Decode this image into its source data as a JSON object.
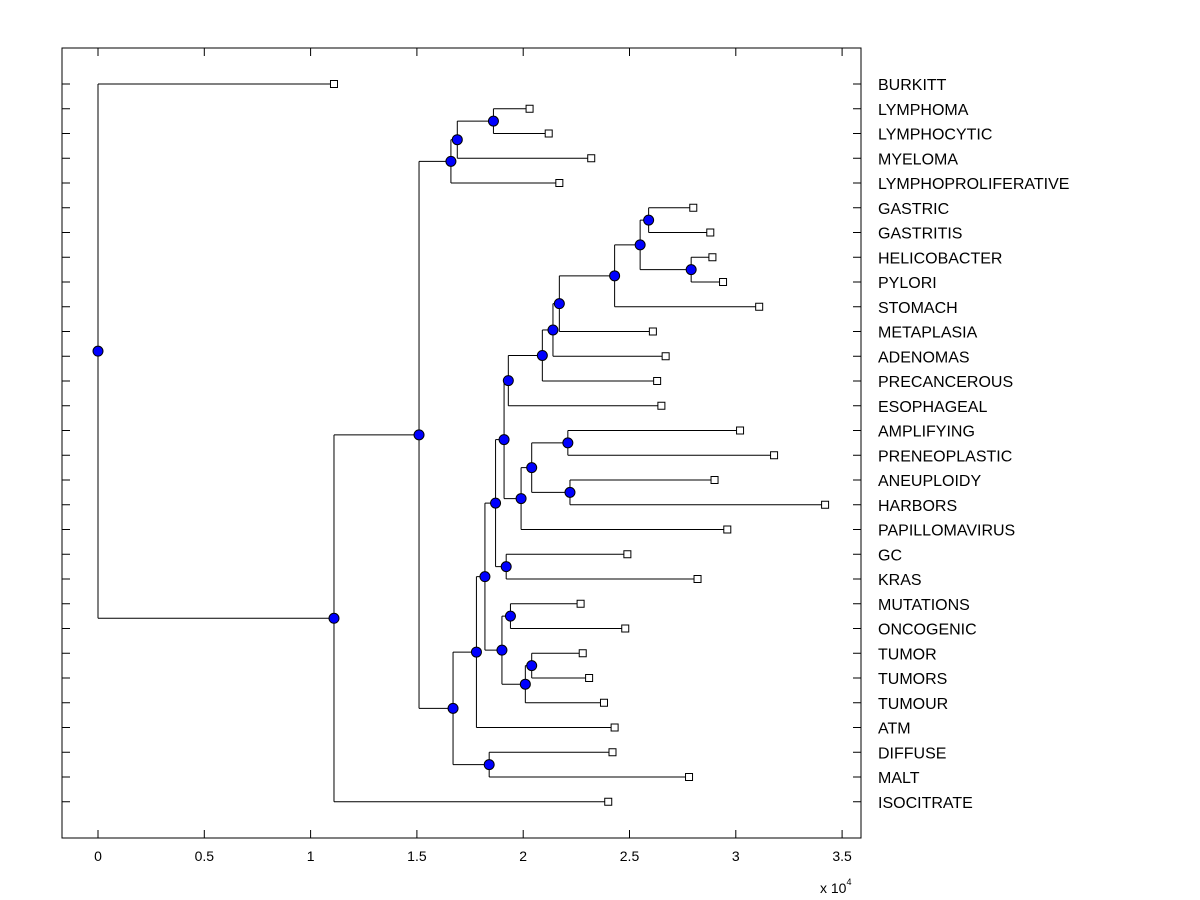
{
  "chart_data": {
    "type": "dendrogram",
    "x_ticks": [
      0,
      0.5,
      1,
      1.5,
      2,
      2.5,
      3,
      3.5
    ],
    "x_tick_labels": [
      "0",
      "0.5",
      "1",
      "1.5",
      "2",
      "2.5",
      "3",
      "3.5"
    ],
    "x_scale_label": "x 10",
    "x_scale_exponent": "4",
    "xlim": [
      -0.17,
      3.6
    ],
    "leaves": [
      {
        "label": "BURKITT",
        "x": 1.11
      },
      {
        "label": "LYMPHOMA",
        "x": 2.03
      },
      {
        "label": "LYMPHOCYTIC",
        "x": 2.12
      },
      {
        "label": "MYELOMA",
        "x": 2.32
      },
      {
        "label": "LYMPHOPROLIFERATIVE",
        "x": 2.17
      },
      {
        "label": "GASTRIC",
        "x": 2.8
      },
      {
        "label": "GASTRITIS",
        "x": 2.88
      },
      {
        "label": "HELICOBACTER",
        "x": 2.89
      },
      {
        "label": "PYLORI",
        "x": 2.94
      },
      {
        "label": "STOMACH",
        "x": 3.11
      },
      {
        "label": "METAPLASIA",
        "x": 2.61
      },
      {
        "label": "ADENOMAS",
        "x": 2.67
      },
      {
        "label": "PRECANCEROUS",
        "x": 2.63
      },
      {
        "label": "ESOPHAGEAL",
        "x": 2.65
      },
      {
        "label": "AMPLIFYING",
        "x": 3.02
      },
      {
        "label": "PRENEOPLASTIC",
        "x": 3.18
      },
      {
        "label": "ANEUPLOIDY",
        "x": 2.9
      },
      {
        "label": "HARBORS",
        "x": 3.42
      },
      {
        "label": "PAPILLOMAVIRUS",
        "x": 2.96
      },
      {
        "label": "GC",
        "x": 2.49
      },
      {
        "label": "KRAS",
        "x": 2.82
      },
      {
        "label": "MUTATIONS",
        "x": 2.27
      },
      {
        "label": "ONCOGENIC",
        "x": 2.48
      },
      {
        "label": "TUMOR",
        "x": 2.28
      },
      {
        "label": "TUMORS",
        "x": 2.31
      },
      {
        "label": "TUMOUR",
        "x": 2.38
      },
      {
        "label": "ATM",
        "x": 2.43
      },
      {
        "label": "DIFFUSE",
        "x": 2.42
      },
      {
        "label": "MALT",
        "x": 2.78
      },
      {
        "label": "ISOCITRATE",
        "x": 2.4
      }
    ],
    "merges": [
      {
        "id": "n1",
        "x": 1.86,
        "children": [
          "L1",
          "L2"
        ]
      },
      {
        "id": "n2",
        "x": 1.69,
        "children": [
          "n1",
          "L3"
        ]
      },
      {
        "id": "n3",
        "x": 1.66,
        "children": [
          "n2",
          "L4"
        ]
      },
      {
        "id": "n4",
        "x": 2.59,
        "children": [
          "L5",
          "L6"
        ]
      },
      {
        "id": "n5",
        "x": 2.79,
        "children": [
          "L7",
          "L8"
        ]
      },
      {
        "id": "n6",
        "x": 2.55,
        "children": [
          "n4",
          "n5"
        ]
      },
      {
        "id": "n7",
        "x": 2.43,
        "children": [
          "n6",
          "L9"
        ]
      },
      {
        "id": "n8",
        "x": 2.17,
        "children": [
          "n7",
          "L10"
        ]
      },
      {
        "id": "n9",
        "x": 2.14,
        "children": [
          "n8",
          "L11"
        ]
      },
      {
        "id": "n10",
        "x": 2.09,
        "children": [
          "n9",
          "L12"
        ]
      },
      {
        "id": "n11",
        "x": 1.93,
        "children": [
          "n10",
          "L13"
        ]
      },
      {
        "id": "n12",
        "x": 2.21,
        "children": [
          "L14",
          "L15"
        ]
      },
      {
        "id": "n13",
        "x": 2.22,
        "children": [
          "L16",
          "L17"
        ]
      },
      {
        "id": "n14",
        "x": 2.04,
        "children": [
          "n12",
          "n13"
        ]
      },
      {
        "id": "n15",
        "x": 1.99,
        "children": [
          "n14",
          "L18"
        ]
      },
      {
        "id": "n16",
        "x": 1.91,
        "children": [
          "n11",
          "n15"
        ]
      },
      {
        "id": "n17",
        "x": 1.92,
        "children": [
          "L19",
          "L20"
        ]
      },
      {
        "id": "n18",
        "x": 1.87,
        "children": [
          "n16",
          "n17"
        ]
      },
      {
        "id": "n19",
        "x": 1.94,
        "children": [
          "L21",
          "L22"
        ]
      },
      {
        "id": "n20",
        "x": 2.04,
        "children": [
          "L23",
          "L24"
        ]
      },
      {
        "id": "n21",
        "x": 2.01,
        "children": [
          "n20",
          "L25"
        ]
      },
      {
        "id": "n22",
        "x": 1.9,
        "children": [
          "n19",
          "n21"
        ]
      },
      {
        "id": "n23",
        "x": 1.82,
        "children": [
          "n18",
          "n22"
        ]
      },
      {
        "id": "n24",
        "x": 1.78,
        "children": [
          "n23",
          "L26"
        ]
      },
      {
        "id": "n25",
        "x": 1.84,
        "children": [
          "L27",
          "L28"
        ]
      },
      {
        "id": "n26",
        "x": 1.67,
        "children": [
          "n24",
          "n25"
        ]
      },
      {
        "id": "n27",
        "x": 1.51,
        "children": [
          "n3",
          "n26"
        ]
      },
      {
        "id": "n28",
        "x": 1.11,
        "children": [
          "n27",
          "L29"
        ]
      },
      {
        "id": "n29",
        "x": 0.0,
        "children": [
          "L0",
          "n28"
        ]
      }
    ]
  },
  "colors": {
    "node_fill": "#0000ff",
    "line": "#000000",
    "leaf_fill": "#ffffff"
  }
}
